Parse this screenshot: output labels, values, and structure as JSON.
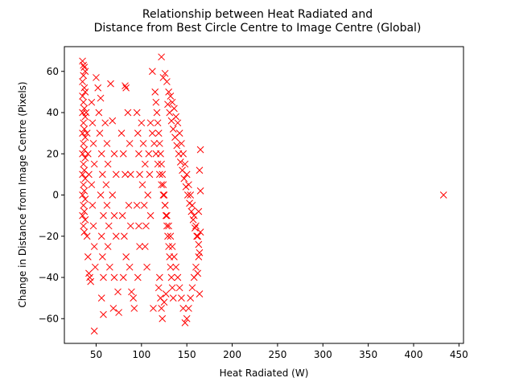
{
  "chart_data": {
    "type": "scatter",
    "title_line1": "Relationship between Heat Radiated and",
    "title_line2": "Distance from Best Circle Centre to Image Centre (Global)",
    "xlabel": "Heat Radiated (W)",
    "ylabel": "Change in Distance from Image Centre (Pixels)",
    "xlim": [
      15,
      455
    ],
    "ylim": [
      -72,
      72
    ],
    "xticks": [
      50,
      100,
      150,
      200,
      250,
      300,
      350,
      400,
      450
    ],
    "yticks": [
      -60,
      -40,
      -20,
      0,
      20,
      40,
      60
    ],
    "marker": "x",
    "color": "#ff0000",
    "grid": false,
    "points": [
      [
        35,
        65
      ],
      [
        36,
        63
      ],
      [
        37,
        62
      ],
      [
        38,
        60
      ],
      [
        36,
        58
      ],
      [
        35,
        55
      ],
      [
        37,
        52
      ],
      [
        38,
        50
      ],
      [
        35,
        48
      ],
      [
        36,
        45
      ],
      [
        37,
        42
      ],
      [
        35,
        40
      ],
      [
        38,
        38
      ],
      [
        36,
        35
      ],
      [
        37,
        32
      ],
      [
        35,
        30
      ],
      [
        38,
        28
      ],
      [
        36,
        25
      ],
      [
        37,
        22
      ],
      [
        35,
        20
      ],
      [
        38,
        18
      ],
      [
        36,
        15
      ],
      [
        37,
        12
      ],
      [
        35,
        10
      ],
      [
        38,
        8
      ],
      [
        36,
        5
      ],
      [
        37,
        2
      ],
      [
        35,
        0
      ],
      [
        38,
        -2
      ],
      [
        36,
        -5
      ],
      [
        37,
        -8
      ],
      [
        35,
        -10
      ],
      [
        38,
        -12
      ],
      [
        36,
        -15
      ],
      [
        37,
        -18
      ],
      [
        39,
        40
      ],
      [
        40,
        30
      ],
      [
        41,
        20
      ],
      [
        42,
        10
      ],
      [
        40,
        -20
      ],
      [
        41,
        -30
      ],
      [
        42,
        -38
      ],
      [
        43,
        -40
      ],
      [
        44,
        -42
      ],
      [
        45,
        45
      ],
      [
        46,
        35
      ],
      [
        47,
        25
      ],
      [
        48,
        15
      ],
      [
        45,
        5
      ],
      [
        46,
        -5
      ],
      [
        47,
        -15
      ],
      [
        48,
        -25
      ],
      [
        49,
        -35
      ],
      [
        48,
        -66
      ],
      [
        50,
        57
      ],
      [
        52,
        52
      ],
      [
        55,
        47
      ],
      [
        53,
        40
      ],
      [
        54,
        30
      ],
      [
        56,
        20
      ],
      [
        57,
        10
      ],
      [
        55,
        0
      ],
      [
        58,
        -10
      ],
      [
        56,
        -20
      ],
      [
        57,
        -30
      ],
      [
        58,
        -40
      ],
      [
        56,
        -50
      ],
      [
        58,
        -58
      ],
      [
        60,
        35
      ],
      [
        62,
        25
      ],
      [
        63,
        15
      ],
      [
        61,
        5
      ],
      [
        62,
        -5
      ],
      [
        64,
        -15
      ],
      [
        63,
        -25
      ],
      [
        65,
        -35
      ],
      [
        66,
        54
      ],
      [
        68,
        36
      ],
      [
        70,
        20
      ],
      [
        72,
        10
      ],
      [
        68,
        0
      ],
      [
        70,
        -10
      ],
      [
        72,
        -20
      ],
      [
        70,
        -40
      ],
      [
        69,
        -55
      ],
      [
        74,
        -47
      ],
      [
        75,
        -57
      ],
      [
        78,
        30
      ],
      [
        80,
        20
      ],
      [
        82,
        10
      ],
      [
        79,
        -10
      ],
      [
        81,
        -20
      ],
      [
        83,
        -30
      ],
      [
        80,
        -40
      ],
      [
        82,
        53
      ],
      [
        83,
        52
      ],
      [
        85,
        40
      ],
      [
        87,
        25
      ],
      [
        88,
        10
      ],
      [
        86,
        -5
      ],
      [
        88,
        -15
      ],
      [
        87,
        -35
      ],
      [
        89,
        -47
      ],
      [
        91,
        -50
      ],
      [
        92,
        -55
      ],
      [
        95,
        40
      ],
      [
        96,
        30
      ],
      [
        97,
        20
      ],
      [
        98,
        10
      ],
      [
        95,
        -5
      ],
      [
        97,
        -15
      ],
      [
        98,
        -25
      ],
      [
        96,
        -40
      ],
      [
        100,
        35
      ],
      [
        102,
        25
      ],
      [
        104,
        15
      ],
      [
        101,
        5
      ],
      [
        103,
        -5
      ],
      [
        105,
        -15
      ],
      [
        104,
        -25
      ],
      [
        106,
        -35
      ],
      [
        108,
        20
      ],
      [
        109,
        10
      ],
      [
        107,
        0
      ],
      [
        110,
        -10
      ],
      [
        112,
        60
      ],
      [
        113,
        -55
      ],
      [
        115,
        50
      ],
      [
        116,
        45
      ],
      [
        117,
        40
      ],
      [
        118,
        35
      ],
      [
        119,
        30
      ],
      [
        120,
        25
      ],
      [
        121,
        20
      ],
      [
        122,
        15
      ],
      [
        123,
        10
      ],
      [
        124,
        5
      ],
      [
        125,
        0
      ],
      [
        126,
        -5
      ],
      [
        127,
        -10
      ],
      [
        128,
        -15
      ],
      [
        129,
        -20
      ],
      [
        130,
        -25
      ],
      [
        131,
        -30
      ],
      [
        132,
        -35
      ],
      [
        133,
        -40
      ],
      [
        134,
        -45
      ],
      [
        135,
        -50
      ],
      [
        122,
        67
      ],
      [
        124,
        57
      ],
      [
        126,
        59
      ],
      [
        128,
        55
      ],
      [
        130,
        50
      ],
      [
        132,
        48
      ],
      [
        134,
        45
      ],
      [
        136,
        42
      ],
      [
        138,
        38
      ],
      [
        140,
        35
      ],
      [
        142,
        30
      ],
      [
        144,
        25
      ],
      [
        146,
        20
      ],
      [
        148,
        15
      ],
      [
        150,
        10
      ],
      [
        152,
        5
      ],
      [
        154,
        0
      ],
      [
        156,
        -5
      ],
      [
        158,
        -10
      ],
      [
        160,
        -15
      ],
      [
        162,
        -20
      ],
      [
        163,
        -30
      ],
      [
        160,
        -35
      ],
      [
        158,
        -40
      ],
      [
        156,
        -45
      ],
      [
        154,
        -50
      ],
      [
        152,
        -55
      ],
      [
        150,
        -60
      ],
      [
        148,
        -62
      ],
      [
        146,
        -55
      ],
      [
        144,
        -50
      ],
      [
        142,
        -45
      ],
      [
        140,
        -40
      ],
      [
        138,
        -35
      ],
      [
        136,
        -30
      ],
      [
        134,
        -25
      ],
      [
        132,
        -20
      ],
      [
        130,
        -15
      ],
      [
        128,
        -10
      ],
      [
        126,
        -5
      ],
      [
        124,
        0
      ],
      [
        122,
        5
      ],
      [
        120,
        10
      ],
      [
        118,
        15
      ],
      [
        116,
        20
      ],
      [
        114,
        25
      ],
      [
        112,
        30
      ],
      [
        110,
        35
      ],
      [
        120,
        -40
      ],
      [
        119,
        -45
      ],
      [
        121,
        -50
      ],
      [
        122,
        -55
      ],
      [
        123,
        -60
      ],
      [
        125,
        -52
      ],
      [
        127,
        -48
      ],
      [
        129,
        44
      ],
      [
        131,
        40
      ],
      [
        133,
        36
      ],
      [
        135,
        32
      ],
      [
        137,
        28
      ],
      [
        139,
        24
      ],
      [
        141,
        20
      ],
      [
        143,
        16
      ],
      [
        145,
        12
      ],
      [
        147,
        8
      ],
      [
        149,
        4
      ],
      [
        151,
        0
      ],
      [
        153,
        -4
      ],
      [
        155,
        -8
      ],
      [
        157,
        -12
      ],
      [
        159,
        -16
      ],
      [
        161,
        -20
      ],
      [
        163,
        -24
      ],
      [
        164,
        -28
      ],
      [
        165,
        22
      ],
      [
        164,
        12
      ],
      [
        165,
        2
      ],
      [
        163,
        -8
      ],
      [
        165,
        -18
      ],
      [
        162,
        -38
      ],
      [
        164,
        -48
      ],
      [
        433,
        0
      ]
    ]
  }
}
